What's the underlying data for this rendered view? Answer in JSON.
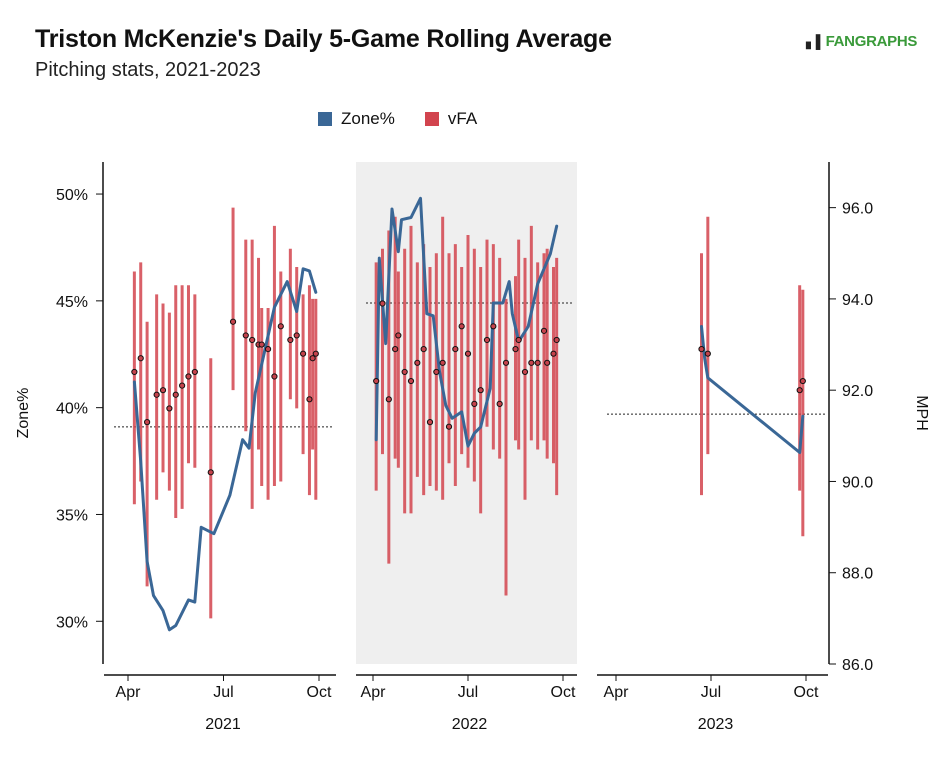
{
  "title": "Triston McKenzie's Daily 5-Game Rolling Average",
  "subtitle": "Pitching stats, 2021-2023",
  "brand": "FANGRAPHS",
  "colors": {
    "zone": "#3a6796",
    "vfa": "#d2444e",
    "shade": "#efefef"
  },
  "chart_data": {
    "type": "line",
    "title": "Triston McKenzie's Daily 5-Game Rolling Average",
    "subtitle": "Pitching stats, 2021-2023",
    "legend": {
      "position": "top",
      "entries": [
        "Zone%",
        "vFA"
      ]
    },
    "left_axis": {
      "label": "Zone%",
      "ticks": [
        "30%",
        "35%",
        "40%",
        "45%",
        "50%"
      ],
      "range": [
        28,
        51.5
      ]
    },
    "right_axis": {
      "label": "MPH",
      "ticks": [
        "86.0",
        "88.0",
        "90.0",
        "92.0",
        "94.0",
        "96.0"
      ],
      "range": [
        86,
        97
      ]
    },
    "x_ticks": [
      "Apr",
      "Jul",
      "Oct"
    ],
    "grid": false,
    "panels": [
      {
        "year": "2021",
        "shaded": false,
        "zone_avg": 39.1,
        "zone_series": [
          [
            4.2,
            41.2
          ],
          [
            4.4,
            37.5
          ],
          [
            4.6,
            32.8
          ],
          [
            4.8,
            31.2
          ],
          [
            5.1,
            30.5
          ],
          [
            5.3,
            29.6
          ],
          [
            5.5,
            29.8
          ],
          [
            5.9,
            31.0
          ],
          [
            6.1,
            30.9
          ],
          [
            6.3,
            34.4
          ],
          [
            6.7,
            34.1
          ],
          [
            7.2,
            35.9
          ],
          [
            7.6,
            38.5
          ],
          [
            7.8,
            38.1
          ],
          [
            8.0,
            40.7
          ],
          [
            8.3,
            42.7
          ],
          [
            8.6,
            44.7
          ],
          [
            9.0,
            45.9
          ],
          [
            9.3,
            44.5
          ],
          [
            9.5,
            46.5
          ],
          [
            9.7,
            46.4
          ],
          [
            9.9,
            45.4
          ]
        ],
        "vfa_avg": [
          [
            4.2,
            92.4
          ],
          [
            4.4,
            92.7
          ],
          [
            4.6,
            91.3
          ],
          [
            4.9,
            91.9
          ],
          [
            5.1,
            92.0
          ],
          [
            5.3,
            91.6
          ],
          [
            5.5,
            91.9
          ],
          [
            5.7,
            92.1
          ],
          [
            5.9,
            92.3
          ],
          [
            6.1,
            92.4
          ],
          [
            6.6,
            90.2
          ],
          [
            7.3,
            93.5
          ],
          [
            7.7,
            93.2
          ],
          [
            7.9,
            93.1
          ],
          [
            8.1,
            93.0
          ],
          [
            8.2,
            93.0
          ],
          [
            8.4,
            92.9
          ],
          [
            8.6,
            92.3
          ],
          [
            8.8,
            93.4
          ],
          [
            9.1,
            93.1
          ],
          [
            9.3,
            93.2
          ],
          [
            9.5,
            92.8
          ],
          [
            9.7,
            91.8
          ],
          [
            9.8,
            92.7
          ],
          [
            9.9,
            92.8
          ]
        ],
        "vfa_range": [
          [
            4.2,
            89.5,
            94.6
          ],
          [
            4.4,
            90.0,
            94.8
          ],
          [
            4.6,
            87.7,
            93.5
          ],
          [
            4.9,
            89.6,
            94.1
          ],
          [
            5.1,
            90.2,
            93.9
          ],
          [
            5.3,
            89.8,
            93.7
          ],
          [
            5.5,
            89.2,
            94.3
          ],
          [
            5.7,
            89.4,
            94.3
          ],
          [
            5.9,
            90.4,
            94.3
          ],
          [
            6.1,
            90.3,
            94.1
          ],
          [
            6.6,
            87.0,
            92.7
          ],
          [
            7.3,
            92.0,
            96.0
          ],
          [
            7.7,
            91.1,
            95.3
          ],
          [
            7.9,
            89.4,
            95.3
          ],
          [
            8.1,
            90.7,
            94.9
          ],
          [
            8.2,
            89.9,
            93.8
          ],
          [
            8.4,
            89.6,
            93.8
          ],
          [
            8.6,
            89.9,
            95.6
          ],
          [
            8.8,
            90.0,
            94.6
          ],
          [
            9.1,
            91.8,
            95.1
          ],
          [
            9.3,
            91.6,
            94.7
          ],
          [
            9.5,
            90.6,
            94.1
          ],
          [
            9.7,
            89.7,
            94.3
          ],
          [
            9.8,
            90.7,
            94.0
          ],
          [
            9.9,
            89.6,
            94.0
          ]
        ]
      },
      {
        "year": "2022",
        "shaded": true,
        "zone_avg": 44.9,
        "zone_series": [
          [
            4.1,
            38.5
          ],
          [
            4.2,
            47.0
          ],
          [
            4.4,
            43.0
          ],
          [
            4.6,
            49.3
          ],
          [
            4.8,
            47.3
          ],
          [
            4.9,
            48.8
          ],
          [
            5.2,
            48.9
          ],
          [
            5.5,
            49.8
          ],
          [
            5.7,
            44.4
          ],
          [
            5.9,
            44.3
          ],
          [
            6.1,
            41.7
          ],
          [
            6.3,
            40.1
          ],
          [
            6.5,
            39.5
          ],
          [
            6.8,
            39.8
          ],
          [
            7.0,
            38.2
          ],
          [
            7.2,
            38.8
          ],
          [
            7.4,
            39.1
          ],
          [
            7.7,
            40.9
          ],
          [
            7.8,
            44.9
          ],
          [
            8.1,
            44.9
          ],
          [
            8.3,
            45.9
          ],
          [
            8.4,
            44.4
          ],
          [
            8.6,
            43.1
          ],
          [
            8.9,
            43.8
          ],
          [
            9.2,
            45.8
          ],
          [
            9.4,
            46.5
          ],
          [
            9.6,
            47.2
          ],
          [
            9.8,
            48.5
          ]
        ],
        "vfa_avg": [
          [
            4.1,
            92.2
          ],
          [
            4.3,
            93.9
          ],
          [
            4.5,
            91.8
          ],
          [
            4.7,
            92.9
          ],
          [
            4.8,
            93.2
          ],
          [
            5.0,
            92.4
          ],
          [
            5.2,
            92.2
          ],
          [
            5.4,
            92.6
          ],
          [
            5.6,
            92.9
          ],
          [
            5.8,
            91.3
          ],
          [
            6.0,
            92.4
          ],
          [
            6.2,
            92.6
          ],
          [
            6.4,
            91.2
          ],
          [
            6.6,
            92.9
          ],
          [
            6.8,
            93.4
          ],
          [
            7.0,
            92.8
          ],
          [
            7.2,
            91.7
          ],
          [
            7.4,
            92.0
          ],
          [
            7.6,
            93.1
          ],
          [
            7.8,
            93.4
          ],
          [
            8.0,
            91.7
          ],
          [
            8.2,
            92.6
          ],
          [
            8.5,
            92.9
          ],
          [
            8.6,
            93.1
          ],
          [
            8.8,
            92.4
          ],
          [
            9.0,
            92.6
          ],
          [
            9.2,
            92.6
          ],
          [
            9.4,
            93.3
          ],
          [
            9.5,
            92.6
          ],
          [
            9.7,
            92.8
          ],
          [
            9.8,
            93.1
          ]
        ],
        "vfa_range": [
          [
            4.1,
            89.8,
            94.8
          ],
          [
            4.3,
            90.6,
            95.1
          ],
          [
            4.5,
            88.2,
            95.5
          ],
          [
            4.7,
            90.5,
            95.8
          ],
          [
            4.8,
            90.3,
            94.6
          ],
          [
            5.0,
            89.3,
            95.1
          ],
          [
            5.2,
            89.3,
            95.6
          ],
          [
            5.4,
            90.1,
            94.8
          ],
          [
            5.6,
            89.7,
            95.2
          ],
          [
            5.8,
            89.9,
            94.7
          ],
          [
            6.0,
            89.8,
            95.0
          ],
          [
            6.2,
            89.6,
            95.8
          ],
          [
            6.4,
            90.4,
            95.0
          ],
          [
            6.6,
            89.9,
            95.2
          ],
          [
            6.8,
            90.6,
            94.7
          ],
          [
            7.0,
            90.3,
            95.4
          ],
          [
            7.2,
            90.0,
            95.1
          ],
          [
            7.4,
            89.3,
            94.7
          ],
          [
            7.6,
            91.2,
            95.3
          ],
          [
            7.8,
            90.7,
            95.2
          ],
          [
            8.0,
            90.5,
            94.9
          ],
          [
            8.2,
            87.5,
            94.0
          ],
          [
            8.5,
            90.9,
            94.5
          ],
          [
            8.6,
            90.7,
            95.3
          ],
          [
            8.8,
            89.6,
            94.9
          ],
          [
            9.0,
            90.9,
            95.6
          ],
          [
            9.2,
            90.7,
            94.8
          ],
          [
            9.4,
            90.9,
            95.0
          ],
          [
            9.5,
            90.5,
            95.1
          ],
          [
            9.7,
            90.4,
            94.7
          ],
          [
            9.8,
            89.7,
            94.9
          ]
        ]
      },
      {
        "year": "2023",
        "shaded": false,
        "zone_avg": 39.7,
        "zone_series": [
          [
            6.7,
            43.8
          ],
          [
            6.8,
            42.3
          ],
          [
            6.9,
            41.4
          ],
          [
            9.8,
            37.9
          ],
          [
            9.9,
            39.6
          ]
        ],
        "vfa_avg": [
          [
            6.7,
            92.9
          ],
          [
            6.9,
            92.8
          ],
          [
            9.8,
            92.0
          ],
          [
            9.9,
            92.2
          ]
        ],
        "vfa_range": [
          [
            6.7,
            89.7,
            95.0
          ],
          [
            6.9,
            90.6,
            95.8
          ],
          [
            9.8,
            89.8,
            94.3
          ],
          [
            9.9,
            88.8,
            94.2
          ]
        ]
      }
    ]
  }
}
